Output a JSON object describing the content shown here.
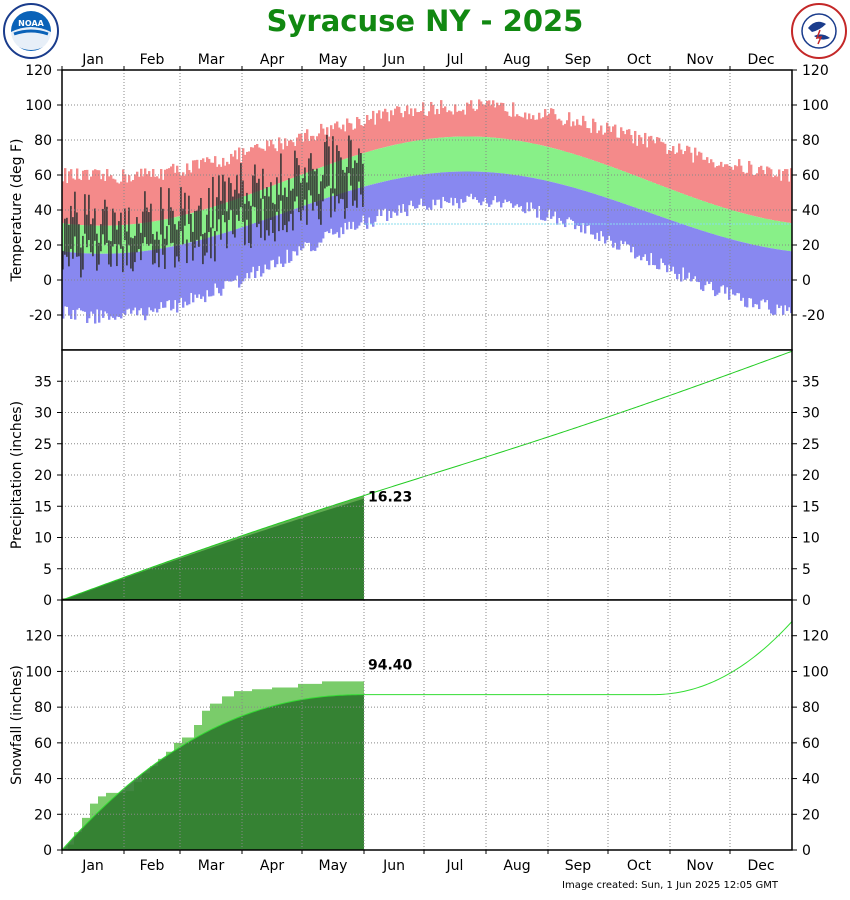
{
  "title": "Syracuse NY - 2025",
  "created": "Image created: Sun, 1 Jun 2025 12:05 GMT",
  "logos": {
    "left": "noaa-logo",
    "left_text": "NOAA",
    "right": "nws-logo"
  },
  "colors": {
    "record_high": "#f48a8a",
    "normal_band": "#88f088",
    "record_low": "#8888f0",
    "actual_temp": "#333333",
    "accum_actual": "#5aaa4a",
    "accum_normal": "#2d7a2d",
    "normal_line": "#66ee66",
    "surplus": "#a88888",
    "title": "#118811"
  },
  "chart_data": [
    {
      "type": "bar",
      "panel": "temperature",
      "ylabel": "Temperature (deg F)",
      "ylim": [
        -40,
        120
      ],
      "yticks": [
        -20,
        0,
        20,
        40,
        60,
        80,
        100,
        120
      ],
      "months": [
        "Jan",
        "Feb",
        "Mar",
        "Apr",
        "May",
        "Jun",
        "Jul",
        "Aug",
        "Sep",
        "Oct",
        "Nov",
        "Dec"
      ],
      "series": [
        {
          "name": "record-high",
          "min": 58,
          "max": 98
        },
        {
          "name": "normal-high",
          "min": 31,
          "max": 82
        },
        {
          "name": "normal-low",
          "min": 15,
          "max": 62
        },
        {
          "name": "record-low",
          "min": -20,
          "max": 46
        }
      ],
      "observed_through": "May 31",
      "observed_days": 151,
      "legend": "none",
      "grid": true
    },
    {
      "type": "area",
      "panel": "precipitation",
      "ylabel": "Precipitation (inches)",
      "ylim": [
        0,
        40
      ],
      "yticks": [
        0,
        5,
        10,
        15,
        20,
        25,
        30,
        35
      ],
      "normal_annual_total": 39.8,
      "actual_to_date": 16.23,
      "actual_label": "16.23",
      "normal_to_date": 15.0,
      "legend": "none",
      "grid": true
    },
    {
      "type": "area",
      "panel": "snowfall",
      "ylabel": "Snowfall (inches)",
      "ylim": [
        0,
        140
      ],
      "yticks": [
        0,
        20,
        40,
        60,
        80,
        100,
        120
      ],
      "actual_to_date": 94.4,
      "actual_label": "94.40",
      "normal_spring_total": 87,
      "normal_annual_total": 128,
      "legend": "none",
      "grid": true
    }
  ]
}
